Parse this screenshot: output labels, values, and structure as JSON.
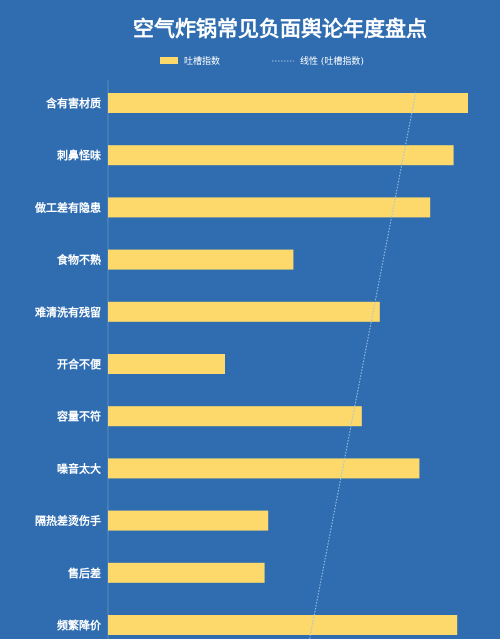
{
  "chart_data": {
    "type": "bar",
    "orientation": "horizontal",
    "title": "空气炸锅常见负面舆论年度盘点",
    "legend": {
      "placement": "top",
      "bar_label": "吐槽指数",
      "trend_label": "线性 (吐槽指数)"
    },
    "categories": [
      "含有害材质",
      "刺鼻怪味",
      "做工差有隐患",
      "食物不熟",
      "难清洗有残留",
      "开合不便",
      "容量不符",
      "噪音太大",
      "隔热差烫伤手",
      "售后差",
      "频繁降价"
    ],
    "values": [
      100,
      96,
      89.5,
      51.5,
      75.5,
      32.5,
      70.5,
      86.5,
      44.5,
      43.5,
      97
    ],
    "xlim": [
      0,
      100
    ],
    "grid": false,
    "trendline": {
      "type": "linear",
      "style": "dotted"
    }
  },
  "colors": {
    "background": "#2f6db0",
    "bar": "#fcd96a",
    "trendline": "#9ec3e8",
    "text": "#ffffff"
  }
}
